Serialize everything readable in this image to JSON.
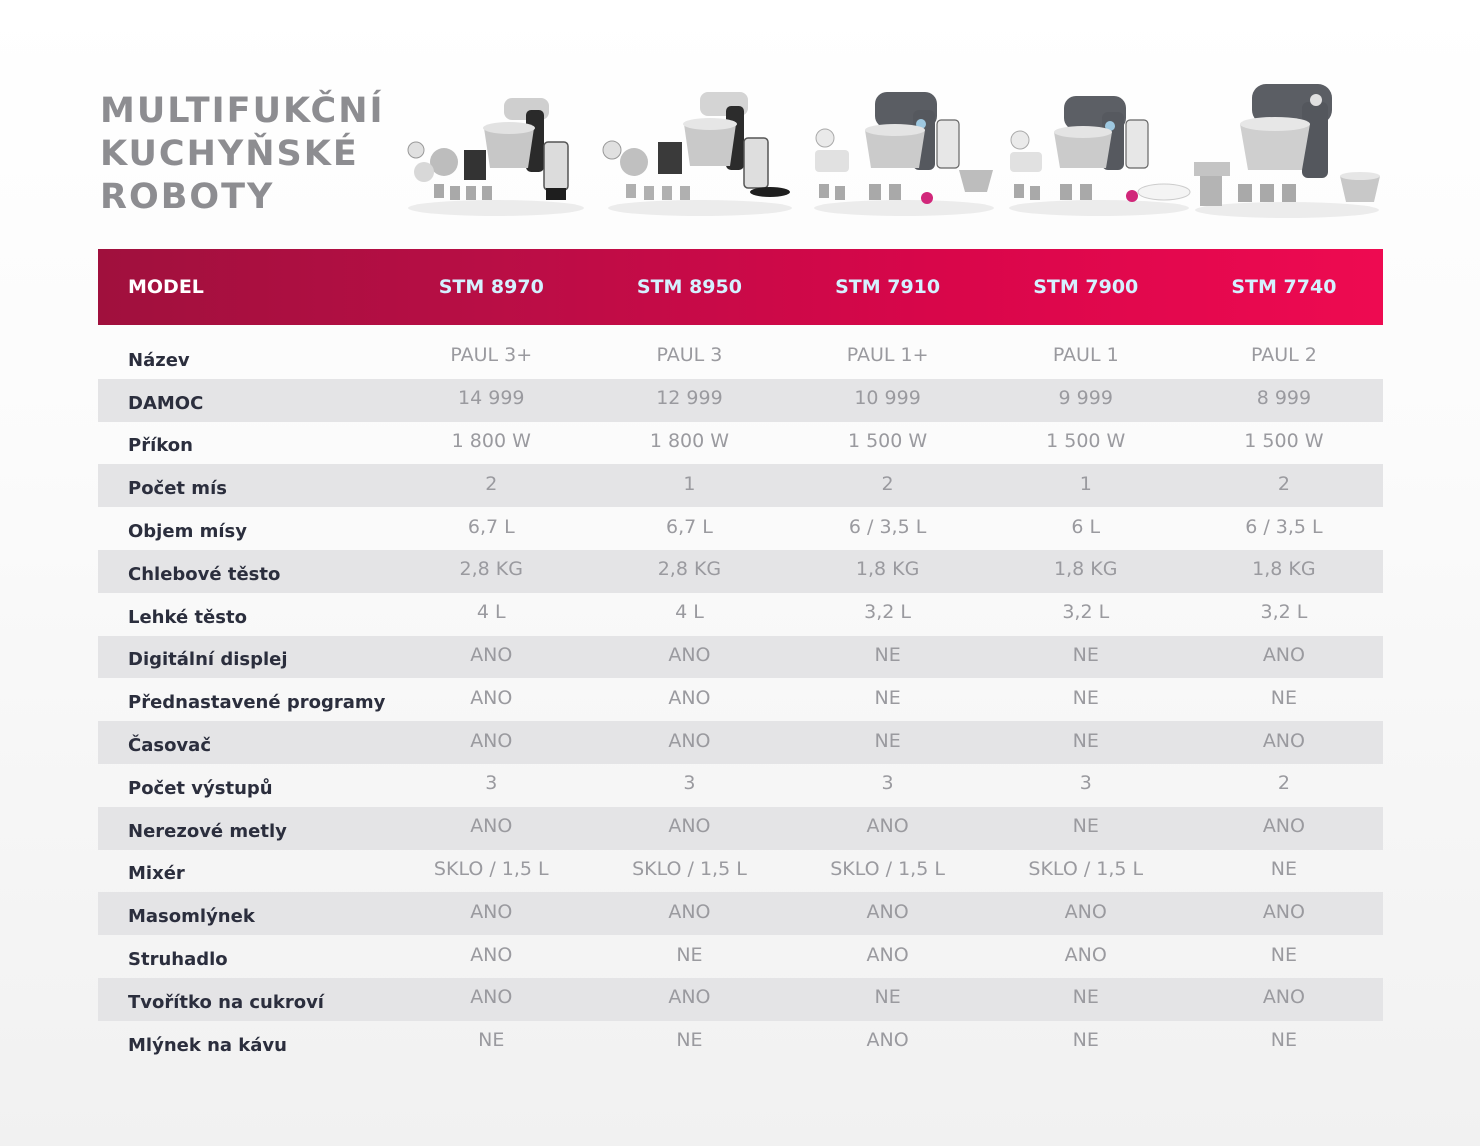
{
  "title_lines": [
    "MULTIFUKČNÍ",
    "KUCHYŇSKÉ",
    "ROBOTY"
  ],
  "header": {
    "label": "MODEL",
    "models": [
      "STM 8970",
      "STM 8950",
      "STM 7910",
      "STM 7900",
      "STM 7740"
    ]
  },
  "rows": [
    {
      "label": "Název",
      "values": [
        "PAUL 3+",
        "PAUL 3",
        "PAUL 1+",
        "PAUL 1",
        "PAUL 2"
      ]
    },
    {
      "label": "DAMOC",
      "values": [
        "14 999",
        "12 999",
        "10 999",
        "9 999",
        "8 999"
      ]
    },
    {
      "label": "Příkon",
      "values": [
        "1 800 W",
        "1 800 W",
        "1 500 W",
        "1 500 W",
        "1 500 W"
      ]
    },
    {
      "label": "Počet mís",
      "values": [
        "2",
        "1",
        "2",
        "1",
        "2"
      ]
    },
    {
      "label": "Objem mísy",
      "values": [
        "6,7 L",
        "6,7 L",
        "6 / 3,5 L",
        "6  L",
        "6 / 3,5 L"
      ]
    },
    {
      "label": "Chlebové těsto",
      "values": [
        "2,8 KG",
        "2,8 KG",
        "1,8 KG",
        "1,8 KG",
        "1,8 KG"
      ]
    },
    {
      "label": "Lehké těsto",
      "values": [
        "4 L",
        "4 L",
        "3,2 L",
        "3,2 L",
        "3,2 L"
      ]
    },
    {
      "label": "Digitální displej",
      "values": [
        "ANO",
        "ANO",
        "NE",
        "NE",
        "ANO"
      ]
    },
    {
      "label": "Přednastavené programy",
      "values": [
        "ANO",
        "ANO",
        "NE",
        "NE",
        "NE"
      ]
    },
    {
      "label": "Časovač",
      "values": [
        "ANO",
        "ANO",
        "NE",
        "NE",
        "ANO"
      ]
    },
    {
      "label": "Počet výstupů",
      "values": [
        "3",
        "3",
        "3",
        "3",
        "2"
      ]
    },
    {
      "label": "Nerezové metly",
      "values": [
        "ANO",
        "ANO",
        "ANO",
        "NE",
        "ANO"
      ]
    },
    {
      "label": "Mixér",
      "values": [
        "SKLO / 1,5 L",
        "SKLO / 1,5 L",
        "SKLO / 1,5 L",
        "SKLO / 1,5 L",
        "NE"
      ]
    },
    {
      "label": "Masomlýnek",
      "values": [
        "ANO",
        "ANO",
        "ANO",
        "ANO",
        "ANO"
      ]
    },
    {
      "label": "Struhadlo",
      "values": [
        "ANO",
        "NE",
        "ANO",
        "ANO",
        "NE"
      ]
    },
    {
      "label": "Tvořítko na cukroví",
      "values": [
        "ANO",
        "ANO",
        "NE",
        "NE",
        "ANO"
      ]
    },
    {
      "label": "Mlýnek na kávu",
      "values": [
        "NE",
        "NE",
        "ANO",
        "NE",
        "NE"
      ]
    }
  ],
  "colors": {
    "title": "#8d8d91",
    "header_start": "#a0103d",
    "header_end": "#ee0a51",
    "model_text": "#d5f1ff",
    "row_stripe": "#e4e4e6",
    "label_text": "#2b2e3d",
    "value_text": "#9a9a9f"
  },
  "product_images": [
    "kitchen-robot-paul-3-plus-set",
    "kitchen-robot-paul-3-set",
    "kitchen-robot-paul-1-plus-set",
    "kitchen-robot-paul-1-set",
    "kitchen-robot-paul-2-set"
  ]
}
